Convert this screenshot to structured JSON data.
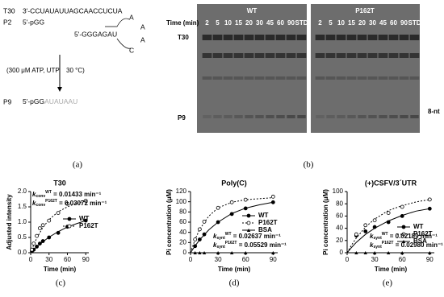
{
  "diagram": {
    "rows": [
      {
        "label": "T30",
        "sequence": "3'-CCUAUAUUAGCAACCUCUA"
      },
      {
        "label": "P2",
        "sequence": "5'-pGG"
      }
    ],
    "hairpin": {
      "stem": "5'-GGGAGAU",
      "loop": [
        "A",
        "A",
        "A",
        "C"
      ]
    },
    "condition_left": "(300 μM ATP, UTP",
    "condition_right": "30 °C)",
    "product": {
      "label": "P9",
      "sequence": "5'-pGG",
      "added": "AUAUAAU"
    }
  },
  "gel": {
    "time_label": "Time (min)",
    "panels": [
      {
        "title": "WT",
        "lanes": [
          "2",
          "5",
          "10",
          "15",
          "20",
          "30",
          "45",
          "60",
          "90",
          "STD"
        ]
      },
      {
        "title": "P162T",
        "lanes": [
          "2",
          "5",
          "10",
          "15",
          "20",
          "30",
          "45",
          "60",
          "90",
          "STD"
        ]
      }
    ],
    "band_labels": {
      "template": "T30",
      "product": "P9",
      "marker": "8-nt"
    }
  },
  "captions": [
    "(a)",
    "(b)",
    "(c)",
    "(d)",
    "(e)"
  ],
  "chart_data": [
    {
      "type": "line",
      "title": "T30",
      "xlabel": "Time (min)",
      "ylabel": "Adjusted intensity",
      "x": [
        2,
        5,
        10,
        15,
        20,
        30,
        45,
        60,
        90
      ],
      "xlim": [
        0,
        95
      ],
      "xticks": [
        0,
        30,
        60,
        90
      ],
      "ylim": [
        0,
        2.0
      ],
      "yticks": [
        {
          "value": 0,
          "label": "0.0"
        },
        {
          "value": 0.5,
          "label": "0.5"
        },
        {
          "value": 1.0,
          "label": "1.0"
        },
        {
          "value": 1.5,
          "label": "1.5"
        },
        {
          "value": 2.0,
          "label": "2.0"
        }
      ],
      "fit_x": [
        0,
        5,
        10,
        20,
        30,
        45,
        60,
        75,
        90
      ],
      "series": [
        {
          "name": "WT",
          "color": "#000000",
          "marker": "filled",
          "dash": false,
          "values": [
            0.05,
            0.1,
            0.2,
            0.3,
            0.38,
            0.5,
            0.65,
            0.85,
            1.05
          ],
          "fit": [
            0,
            0.1,
            0.19,
            0.36,
            0.51,
            0.69,
            0.84,
            0.95,
            1.05
          ]
        },
        {
          "name": "P162T",
          "color": "#000000",
          "marker": "open",
          "dash": true,
          "values": [
            0.1,
            0.3,
            0.55,
            0.8,
            0.9,
            1.05,
            1.3,
            1.6,
            1.7
          ],
          "fit": [
            0,
            0.26,
            0.48,
            0.83,
            1.08,
            1.34,
            1.5,
            1.62,
            1.69
          ]
        }
      ],
      "annotations": [
        {
          "symbol": "k",
          "subscript": "conv",
          "superscript": "WT",
          "text": " = 0.01433 min⁻¹"
        },
        {
          "symbol": "k",
          "subscript": "conv",
          "superscript": "P162T",
          "text": " = 0.03072 min⁻¹"
        }
      ]
    },
    {
      "type": "line",
      "title": "Poly(C)",
      "xlabel": "Time (min)",
      "ylabel": "Pi concentration (μM)",
      "x": [
        5,
        10,
        15,
        30,
        45,
        60,
        90
      ],
      "xlim": [
        0,
        95
      ],
      "xticks": [
        0,
        30,
        60,
        90
      ],
      "ylim": [
        0,
        120
      ],
      "yticks": [
        0,
        20,
        40,
        60,
        80,
        100,
        120
      ],
      "fit_x": [
        0,
        5,
        10,
        20,
        30,
        45,
        60,
        75,
        90
      ],
      "series": [
        {
          "name": "WT",
          "color": "#000000",
          "marker": "filled",
          "dash": false,
          "values": [
            13,
            26,
            36,
            60,
            76,
            87,
            99
          ],
          "fit": [
            0,
            13.5,
            25.4,
            45,
            60,
            77,
            87.5,
            94,
            99
          ]
        },
        {
          "name": "P162T",
          "color": "#000000",
          "marker": "open",
          "dash": true,
          "values": [
            26,
            46,
            61,
            88,
            99,
            104,
            110
          ],
          "fit": [
            0,
            26,
            46,
            72,
            88,
            99,
            104,
            106,
            108
          ]
        },
        {
          "name": "BSA",
          "color": "#000000",
          "marker": "triangle",
          "dash": false,
          "values": [
            0,
            0,
            0,
            0,
            0,
            0,
            0
          ]
        }
      ],
      "annotations": [
        {
          "symbol": "k",
          "subscript": "synt",
          "superscript": "WT",
          "text": " = 0.02637 min⁻¹"
        },
        {
          "symbol": "k",
          "subscript": "synt",
          "superscript": "P162T",
          "text": " = 0.05529 min⁻¹"
        }
      ]
    },
    {
      "type": "line",
      "title": "(+)CSFV/3´UTR",
      "xlabel": "Time (min)",
      "ylabel": "Pi concentration (μM)",
      "x": [
        10,
        20,
        30,
        45,
        60,
        90
      ],
      "xlim": [
        0,
        95
      ],
      "xticks": [
        0,
        30,
        60,
        90
      ],
      "ylim": [
        0,
        100
      ],
      "yticks": [
        0,
        20,
        40,
        60,
        80,
        100
      ],
      "fit_x": [
        0,
        5,
        10,
        20,
        30,
        45,
        60,
        75,
        90
      ],
      "series": [
        {
          "name": "WT",
          "color": "#000000",
          "marker": "filled",
          "dash": false,
          "values": [
            28,
            35,
            42,
            50,
            60,
            72
          ],
          "fit": [
            0,
            8.9,
            17,
            30,
            40,
            52,
            61,
            68,
            72
          ]
        },
        {
          "name": "P162T",
          "color": "#000000",
          "marker": "open",
          "dash": true,
          "values": [
            30,
            45,
            53,
            65,
            75,
            87
          ],
          "fit": [
            0,
            13,
            24,
            42,
            55,
            69,
            77,
            83,
            87
          ]
        },
        {
          "name": "BSA",
          "color": "#000000",
          "marker": "triangle",
          "dash": false,
          "values": [
            0,
            0,
            0,
            0,
            0,
            0
          ]
        }
      ],
      "annotations": [
        {
          "symbol": "k",
          "subscript": "synt",
          "superscript": "WT",
          "text": " = 0.02189 min⁻¹"
        },
        {
          "symbol": "k",
          "subscript": "synt",
          "superscript": "P162T",
          "text": " = 0.02980 min⁻¹"
        }
      ]
    }
  ]
}
